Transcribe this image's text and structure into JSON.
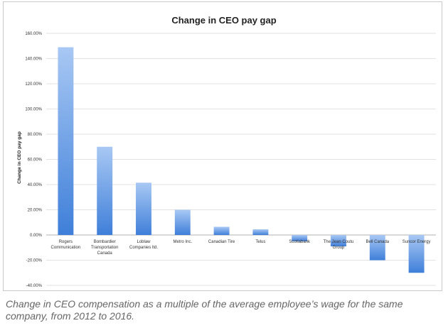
{
  "chart_data": {
    "type": "bar",
    "title": "Change in CEO pay gap",
    "xlabel": "",
    "ylabel": "Change in CEO pay gap",
    "categories": [
      "Rogers Communication",
      "Bombardier Transportation Canada",
      "Loblaw Companies ltd.",
      "Metro Inc.",
      "Canadian Tire",
      "Telus",
      "Scotiabank",
      "The Jean Coutu Group",
      "Bell Canada",
      "Suncor Energy"
    ],
    "values": [
      149,
      70,
      41.5,
      20,
      6.5,
      4.5,
      -5,
      -9,
      -20,
      -30
    ],
    "ylim": [
      -40,
      160
    ],
    "yticks": [
      "-40.00%",
      "-20.00%",
      "0.00%",
      "20.00%",
      "40.00%",
      "60.00%",
      "80.00%",
      "100.00%",
      "120.00%",
      "140.00%",
      "160.00%"
    ],
    "grid": true,
    "legend": "none",
    "colors": {
      "bar_top": "#a8c8f4",
      "bar_bottom": "#3f7fd9",
      "grid": "#d9d9d9",
      "axis": "#999999"
    }
  },
  "caption": "Change in CEO compensation as a multiple of the average employee’s wage for the same company, from 2012 to 2016."
}
